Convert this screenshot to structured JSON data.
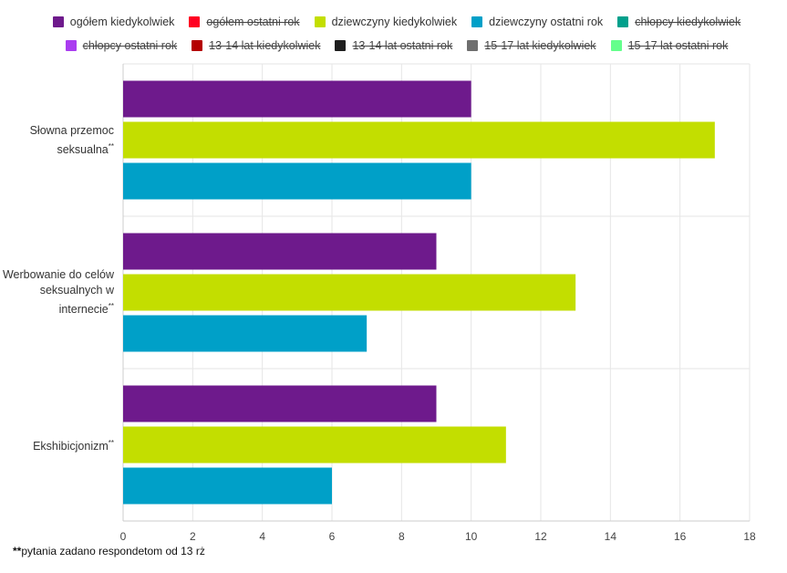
{
  "legend": [
    {
      "name": "ogółem kiedykolwiek",
      "color": "#6e1a8c",
      "hidden": false
    },
    {
      "name": "ogółem ostatni rok",
      "color": "#ff0022",
      "hidden": true
    },
    {
      "name": "dziewczyny kiedykolwiek",
      "color": "#c3de00",
      "hidden": false
    },
    {
      "name": "dziewczyny ostatni rok",
      "color": "#00a0c8",
      "hidden": false
    },
    {
      "name": "chłopcy kiedykolwiek",
      "color": "#00a08c",
      "hidden": true
    },
    {
      "name": "chłopcy ostatni rok",
      "color": "#aa3cf0",
      "hidden": true
    },
    {
      "name": "13-14 lat kiedykolwiek",
      "color": "#b40000",
      "hidden": true
    },
    {
      "name": "13-14 lat ostatni rok",
      "color": "#1e1e1e",
      "hidden": true
    },
    {
      "name": "15-17 lat kiedykolwiek",
      "color": "#6e6e6e",
      "hidden": true
    },
    {
      "name": "15-17 lat ostatni rok",
      "color": "#64ff8c",
      "hidden": true
    }
  ],
  "chart_data": {
    "type": "bar",
    "orientation": "horizontal",
    "categories": [
      {
        "text": "Słowna przemoc seksualna",
        "mark": "**"
      },
      {
        "text": "Werbowanie do celów seksualnych w internecie",
        "mark": "**"
      },
      {
        "text": "Ekshibicjonizm",
        "mark": "**"
      }
    ],
    "series": [
      {
        "name": "ogółem kiedykolwiek",
        "color": "#6e1a8c",
        "values": [
          10,
          9,
          9
        ]
      },
      {
        "name": "dziewczyny kiedykolwiek",
        "color": "#c3de00",
        "values": [
          17,
          13,
          11
        ]
      },
      {
        "name": "dziewczyny ostatni rok",
        "color": "#00a0c8",
        "values": [
          10,
          7,
          6
        ]
      }
    ],
    "x_ticks": [
      "0",
      "2",
      "4",
      "6",
      "8",
      "10",
      "12",
      "14",
      "16",
      "18"
    ],
    "xlim": [
      0,
      18
    ],
    "grid": true,
    "legend_position": "top"
  },
  "footnote": {
    "mark": "**",
    "text": "pytania zadano respondetom od 13 rż"
  }
}
